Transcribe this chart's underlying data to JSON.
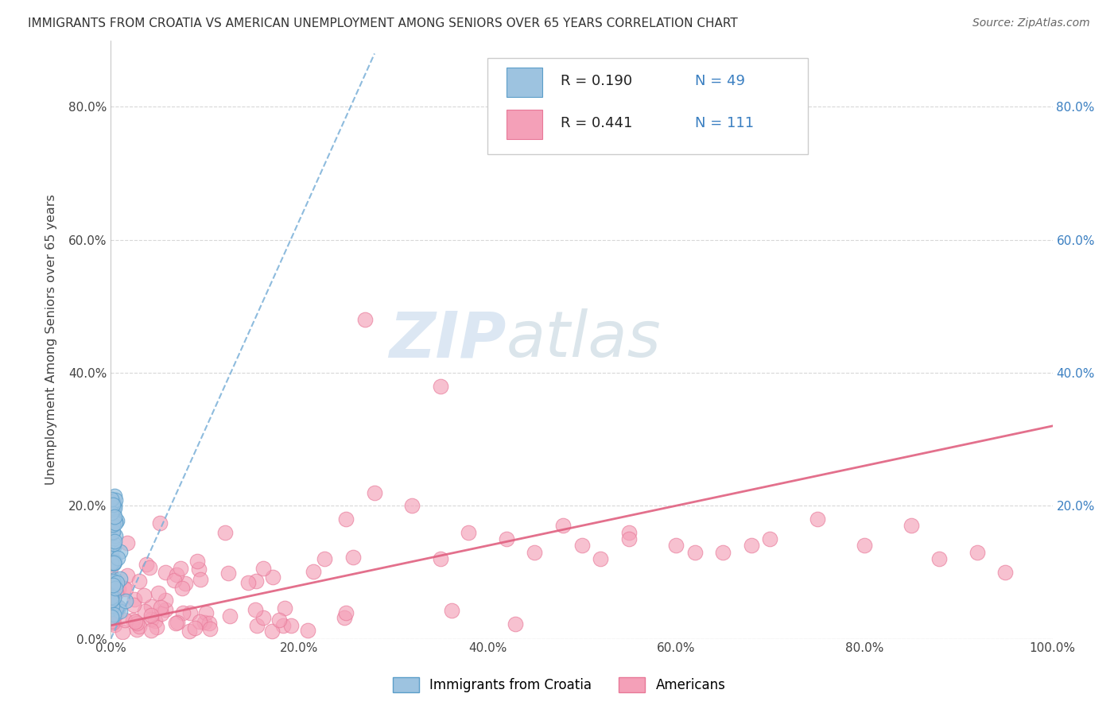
{
  "title": "IMMIGRANTS FROM CROATIA VS AMERICAN UNEMPLOYMENT AMONG SENIORS OVER 65 YEARS CORRELATION CHART",
  "source": "Source: ZipAtlas.com",
  "ylabel": "Unemployment Among Seniors over 65 years",
  "xlim": [
    0,
    1.0
  ],
  "ylim": [
    0,
    0.9
  ],
  "xticklabels": [
    "0.0%",
    "20.0%",
    "40.0%",
    "60.0%",
    "80.0%",
    "100.0%"
  ],
  "yticklabels": [
    "0.0%",
    "20.0%",
    "40.0%",
    "60.0%",
    "80.0%"
  ],
  "right_yticklabels": [
    "20.0%",
    "40.0%",
    "60.0%",
    "80.0%"
  ],
  "blue_trend_x0": 0.0,
  "blue_trend_y0": 0.0,
  "blue_trend_x1": 0.28,
  "blue_trend_y1": 0.88,
  "pink_trend_x0": 0.0,
  "pink_trend_y0": 0.02,
  "pink_trend_x1": 1.0,
  "pink_trend_y1": 0.32,
  "background_color": "#ffffff",
  "grid_color": "#d8d8d8",
  "color_blue_fill": "#9dc3e0",
  "color_blue_edge": "#5b9ec9",
  "color_pink_fill": "#f4a0b8",
  "color_pink_edge": "#e87898",
  "watermark_zip": "ZIP",
  "watermark_atlas": "atlas",
  "legend_r1": "R = 0.190",
  "legend_n1": "N = 49",
  "legend_r2": "R = 0.441",
  "legend_n2": "N = 111"
}
